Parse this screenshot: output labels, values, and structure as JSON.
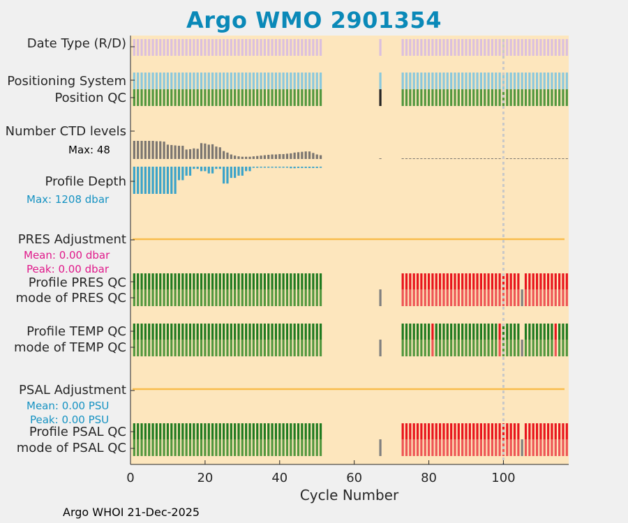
{
  "title": "Argo WMO 2901354",
  "footer": "Argo WHOI 21-Dec-2025",
  "labels": {
    "date_type": "Date Type (R/D)",
    "positioning_system": "Positioning System",
    "position_qc": "Position QC",
    "ctd_levels": "Number CTD levels",
    "ctd_max": "Max: 48",
    "profile_depth": "Profile Depth",
    "depth_max": "Max: 1208 dbar",
    "pres_adj": "PRES Adjustment",
    "pres_mean": "Mean: 0.00 dbar",
    "pres_peak": "Peak: 0.00 dbar",
    "profile_pres_qc": "Profile PRES QC",
    "mode_pres_qc": "mode of PRES QC",
    "profile_temp_qc": "Profile TEMP QC",
    "mode_temp_qc": "mode of TEMP QC",
    "psal_adj": "PSAL Adjustment",
    "psal_mean": "Mean: 0.00 PSU",
    "psal_peak": "Peak: 0.00 PSU",
    "profile_psal_qc": "Profile PSAL QC",
    "mode_psal_qc": "mode of PSAL QC"
  },
  "colors": {
    "title": "#0a89b8",
    "plot_bg": "#fde6bd",
    "date_type": "#dbbfde",
    "positioning": "#8ac8dc",
    "qc_good": "#52973e",
    "qc_bad_black": "#222222",
    "ctd": "#7a7570",
    "depth": "#3aa3c9",
    "adjustment_line": "#f8bc4c",
    "profile_qc_green": "#1f7a1f",
    "profile_qc_red": "#e8141c",
    "mode_green": "#52973e",
    "mode_red": "#ee5555",
    "grey": "#7f7f7f",
    "pres_stats": "#e0198a",
    "psal_stats": "#1592c2"
  },
  "chart_data": {
    "type": "table",
    "xlabel": "Cycle Number",
    "xlim": [
      0,
      117.5
    ],
    "xticks": [
      0,
      20,
      40,
      60,
      80,
      100
    ],
    "reference_line_cycle": 100,
    "series_cycles": {
      "early": [
        1,
        2,
        3,
        4,
        5,
        6,
        7,
        8,
        9,
        10,
        11,
        12,
        13,
        14,
        15,
        16,
        17,
        18,
        19,
        20,
        21,
        22,
        23,
        24,
        25,
        26,
        27,
        28,
        29,
        30,
        31,
        32,
        33,
        34,
        35,
        36,
        37,
        38,
        39,
        40,
        41,
        42,
        43,
        44,
        45,
        46,
        47,
        48,
        49,
        50,
        51
      ],
      "isolated": [
        67
      ],
      "late": [
        73,
        74,
        75,
        76,
        77,
        78,
        79,
        80,
        81,
        82,
        83,
        84,
        85,
        86,
        87,
        88,
        89,
        90,
        91,
        92,
        93,
        94,
        95,
        96,
        97,
        98,
        99,
        100,
        101,
        102,
        103,
        104,
        105,
        106,
        107,
        108,
        109,
        110,
        111,
        112,
        113,
        114,
        115,
        116,
        117
      ]
    },
    "ctd_levels_early": [
      48,
      48,
      48,
      48,
      48,
      48,
      47,
      47,
      46,
      38,
      37,
      36,
      35,
      35,
      25,
      26,
      28,
      27,
      42,
      41,
      38,
      39,
      33,
      31,
      21,
      17,
      12,
      9,
      7,
      6,
      6,
      6,
      7,
      8,
      9,
      10,
      11,
      12,
      12,
      13,
      13,
      14,
      15,
      17,
      18,
      19,
      20,
      20,
      16,
      12,
      10
    ],
    "profile_depth_dbar_early": [
      1208,
      1208,
      1208,
      1208,
      1208,
      1208,
      1208,
      1208,
      1208,
      1208,
      1208,
      1208,
      600,
      600,
      400,
      400,
      100,
      100,
      200,
      200,
      300,
      300,
      100,
      100,
      750,
      750,
      500,
      500,
      400,
      400,
      200,
      200,
      50,
      50,
      40,
      40,
      30,
      30,
      30,
      30,
      30,
      30,
      70,
      70,
      60,
      60,
      60,
      60,
      60,
      60,
      50
    ],
    "adjustment": {
      "pres_mean": 0.0,
      "pres_peak": 0.0,
      "psal_mean": 0.0,
      "psal_peak": 0.0
    },
    "qc_codes_late": {
      "pres_profile_F": [
        73,
        74,
        75,
        76,
        77,
        78,
        79,
        80,
        81,
        82,
        83,
        84,
        85,
        86,
        87,
        88,
        89,
        90,
        91,
        92,
        93,
        94,
        95,
        96,
        97,
        98,
        99,
        100,
        101,
        102,
        103,
        104,
        106,
        107,
        108,
        109,
        110,
        111,
        112,
        113,
        114,
        115,
        116,
        117
      ],
      "temp_profile_F": [
        81,
        99
      ],
      "temp_profile_F_b": [
        114
      ],
      "mode_grey": [
        105
      ]
    }
  }
}
